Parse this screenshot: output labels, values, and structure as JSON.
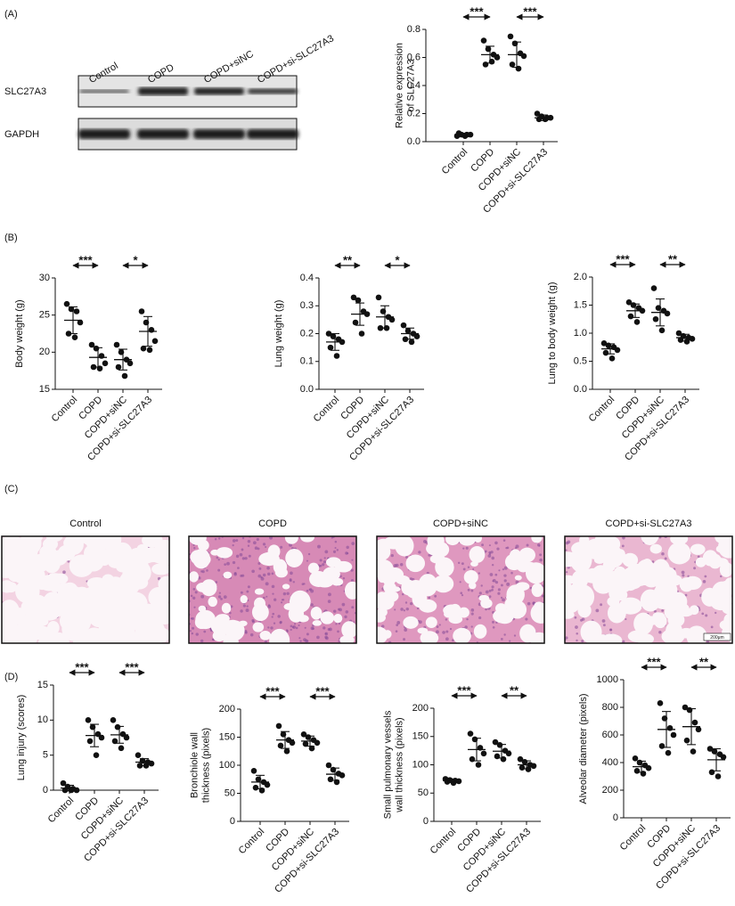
{
  "panel_labels": [
    "(A)",
    "(B)",
    "(C)",
    "(D)"
  ],
  "blot": {
    "lanes": [
      "Control",
      "COPD",
      "COPD+siNC",
      "COPD+si-SLC27A3"
    ],
    "rows": [
      "SLC27A3",
      "GAPDH"
    ]
  },
  "histology": {
    "titles": [
      "Control",
      "COPD",
      "COPD+siNC",
      "COPD+si-SLC27A3"
    ],
    "scale_bar": "200μm"
  },
  "chart_data": [
    {
      "type": "dot",
      "ylabel": [
        "Relative expression",
        "of SLC27A3"
      ],
      "categories": [
        "Control",
        "COPD",
        "COPD+siNC",
        "COPD+si-SLC27A3"
      ],
      "points": [
        [
          0.04,
          0.05,
          0.05,
          0.05,
          0.06,
          0.04
        ],
        [
          0.72,
          0.66,
          0.62,
          0.6,
          0.55,
          0.57
        ],
        [
          0.75,
          0.7,
          0.63,
          0.61,
          0.55,
          0.52
        ],
        [
          0.2,
          0.18,
          0.17,
          0.17,
          0.16,
          0.16
        ]
      ],
      "means": [
        0.05,
        0.62,
        0.62,
        0.17
      ],
      "sds": [
        0.01,
        0.06,
        0.09,
        0.02
      ],
      "color": "#111111",
      "ylim": [
        0,
        0.8
      ],
      "yticks": [
        {
          "value": 0,
          "label": "0.0"
        },
        0.2,
        0.4,
        0.6,
        0.8
      ],
      "significance": [
        "***",
        "***"
      ]
    },
    {
      "type": "dot",
      "ylabel": [
        "Body weight (g)"
      ],
      "categories": [
        "Control",
        "COPD",
        "COPD+siNC",
        "COPD+si-SLC27A3"
      ],
      "points": [
        [
          26.5,
          25.8,
          25.5,
          24,
          22.5,
          22
        ],
        [
          21,
          20.5,
          19.5,
          18.5,
          18,
          17.8
        ],
        [
          21,
          20,
          19,
          18.5,
          18,
          16.8
        ],
        [
          25.5,
          24,
          23,
          21.5,
          20.5,
          20.3
        ]
      ],
      "means": [
        24.3,
        19.3,
        19,
        22.8
      ],
      "sds": [
        1.8,
        1.3,
        1.4,
        2
      ],
      "color": "#111111",
      "ylim": [
        15,
        30
      ],
      "yticks": [
        15,
        20,
        25,
        30
      ],
      "significance": [
        "***",
        "*"
      ]
    },
    {
      "type": "dot",
      "ylabel": [
        "Lung weight (g)"
      ],
      "categories": [
        "Control",
        "COPD",
        "COPD+siNC",
        "COPD+si-SLC27A3"
      ],
      "points": [
        [
          0.2,
          0.19,
          0.18,
          0.17,
          0.15,
          0.12
        ],
        [
          0.33,
          0.32,
          0.28,
          0.27,
          0.24,
          0.2
        ],
        [
          0.33,
          0.28,
          0.26,
          0.25,
          0.22,
          0.22
        ],
        [
          0.23,
          0.21,
          0.2,
          0.19,
          0.18,
          0.17
        ]
      ],
      "means": [
        0.17,
        0.27,
        0.26,
        0.2
      ],
      "sds": [
        0.03,
        0.04,
        0.04,
        0.02
      ],
      "color": "#111111",
      "ylim": [
        0,
        0.4
      ],
      "yticks": [
        {
          "value": 0,
          "label": "0.0"
        },
        0.1,
        0.2,
        0.3,
        0.4
      ],
      "significance": [
        "**",
        "*"
      ]
    },
    {
      "type": "dot",
      "ylabel": [
        "Lung to body weight (g)"
      ],
      "categories": [
        "Control",
        "COPD",
        "COPD+siNC",
        "COPD+si-SLC27A3"
      ],
      "points": [
        [
          0.82,
          0.78,
          0.75,
          0.7,
          0.65,
          0.55
        ],
        [
          1.55,
          1.5,
          1.45,
          1.4,
          1.3,
          1.2
        ],
        [
          1.8,
          1.45,
          1.4,
          1.35,
          1.25,
          1.05
        ],
        [
          1.0,
          0.95,
          0.92,
          0.9,
          0.88,
          0.85
        ]
      ],
      "means": [
        0.72,
        1.4,
        1.37,
        0.92
      ],
      "sds": [
        0.09,
        0.12,
        0.24,
        0.06
      ],
      "color": "#111111",
      "ylim": [
        0,
        2
      ],
      "yticks": [
        {
          "value": 0,
          "label": "0.0"
        },
        0.5,
        {
          "value": 1,
          "label": "1.0"
        },
        1.5,
        {
          "value": 2,
          "label": "2.0"
        }
      ],
      "significance": [
        "***",
        "**"
      ]
    },
    {
      "type": "dot",
      "ylabel": [
        "Lung injury (scores)"
      ],
      "categories": [
        "Control",
        "COPD",
        "COPD+siNC",
        "COPD+si-SLC27A3"
      ],
      "points": [
        [
          1,
          0.5,
          0.2,
          0,
          0,
          0
        ],
        [
          10,
          9,
          8,
          7.5,
          7,
          5
        ],
        [
          10,
          9,
          8,
          7.5,
          7,
          6
        ],
        [
          5,
          4.2,
          4,
          3.8,
          3.5,
          3.5
        ]
      ],
      "means": [
        0.3,
        7.8,
        7.9,
        4
      ],
      "sds": [
        0.4,
        1.6,
        1.2,
        0.5
      ],
      "color": "#111111",
      "ylim": [
        0,
        15
      ],
      "yticks": [
        0,
        5,
        10,
        15
      ],
      "significance": [
        "***",
        "***"
      ]
    },
    {
      "type": "dot",
      "ylabel": [
        "Bronchiole wall",
        "thickness (pixels)"
      ],
      "categories": [
        "Control",
        "COPD",
        "COPD+siNC",
        "COPD+si-SLC27A3"
      ],
      "points": [
        [
          90,
          75,
          70,
          65,
          60,
          55
        ],
        [
          170,
          155,
          145,
          140,
          135,
          125
        ],
        [
          155,
          150,
          145,
          140,
          138,
          130
        ],
        [
          100,
          92,
          85,
          82,
          75,
          70
        ]
      ],
      "means": [
        70,
        145,
        143,
        84
      ],
      "sds": [
        12,
        15,
        9,
        11
      ],
      "color": "#111111",
      "ylim": [
        0,
        200
      ],
      "yticks": [
        0,
        50,
        100,
        150,
        200
      ],
      "significance": [
        "***",
        "***"
      ]
    },
    {
      "type": "dot",
      "ylabel": [
        "Small pulmonary vessels",
        "wall thickness (pixels)"
      ],
      "categories": [
        "Control",
        "COPD",
        "COPD+siNC",
        "COPD+si-SLC27A3"
      ],
      "points": [
        [
          75,
          73,
          72,
          71,
          70,
          68
        ],
        [
          155,
          145,
          130,
          120,
          110,
          100
        ],
        [
          140,
          135,
          125,
          120,
          115,
          110
        ],
        [
          110,
          105,
          100,
          98,
          95,
          92
        ]
      ],
      "means": [
        72,
        127,
        124,
        100
      ],
      "sds": [
        3,
        20,
        12,
        7
      ],
      "color": "#111111",
      "ylim": [
        0,
        200
      ],
      "yticks": [
        0,
        50,
        100,
        150,
        200
      ],
      "significance": [
        "***",
        "**"
      ]
    },
    {
      "type": "dot",
      "ylabel": [
        "Alveolar diameter (pixels)"
      ],
      "categories": [
        "Control",
        "COPD",
        "COPD+siNC",
        "COPD+si-SLC27A3"
      ],
      "points": [
        [
          430,
          400,
          380,
          360,
          340,
          320
        ],
        [
          830,
          720,
          650,
          600,
          520,
          470
        ],
        [
          800,
          780,
          690,
          640,
          560,
          480
        ],
        [
          500,
          480,
          460,
          440,
          330,
          300
        ]
      ],
      "means": [
        370,
        640,
        660,
        420
      ],
      "sds": [
        40,
        130,
        130,
        80
      ],
      "color": "#111111",
      "ylim": [
        0,
        1000
      ],
      "yticks": [
        0,
        200,
        400,
        600,
        800,
        1000
      ],
      "significance": [
        "***",
        "**"
      ]
    }
  ]
}
